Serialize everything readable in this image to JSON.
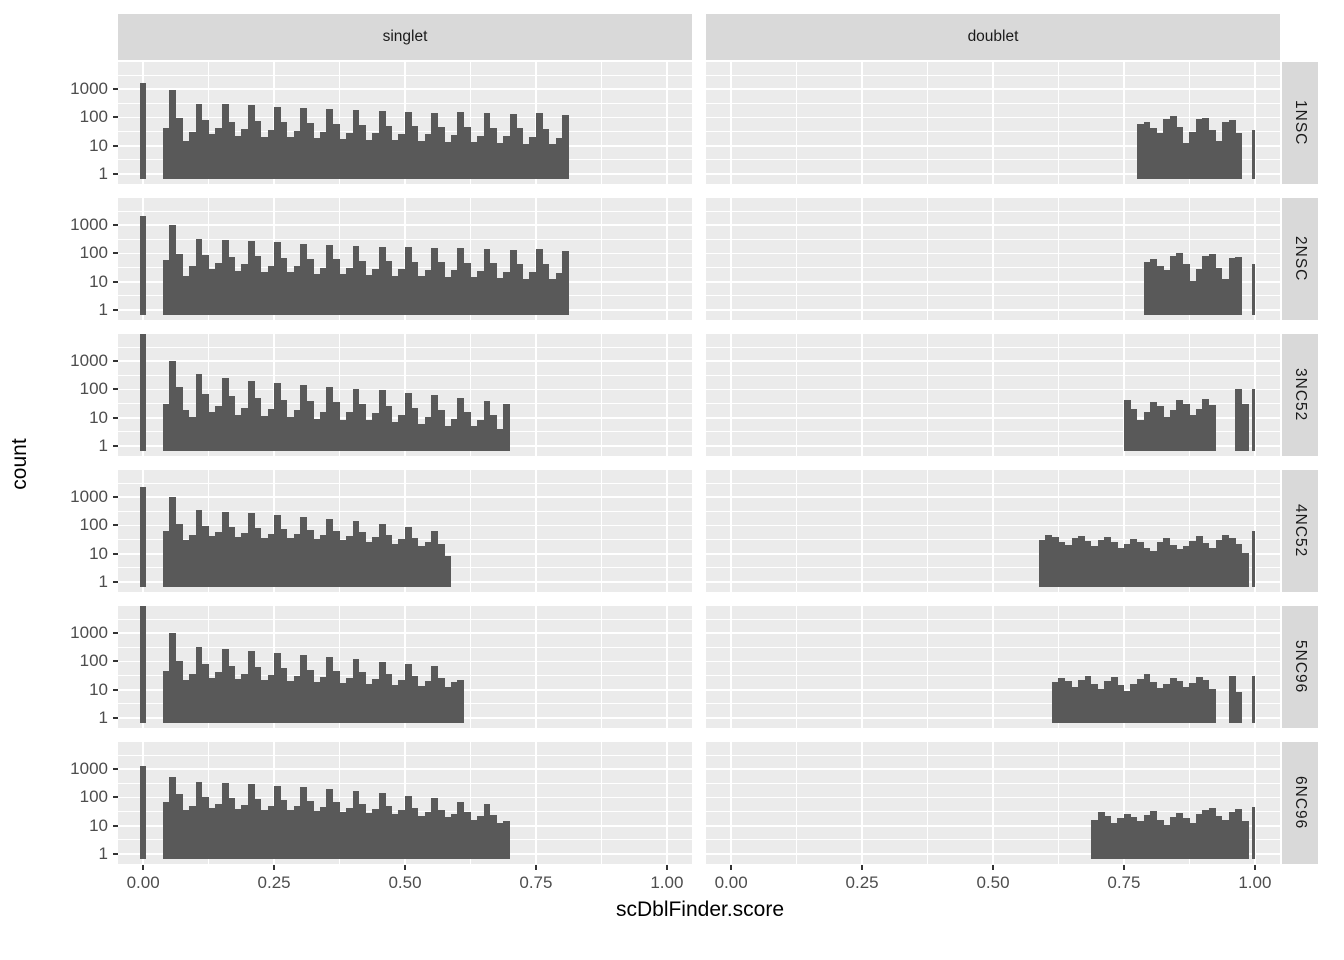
{
  "figure": {
    "x_axis_title": "scDblFinder.score",
    "y_axis_title": "count",
    "column_facets": [
      {
        "label": "singlet"
      },
      {
        "label": "doublet"
      }
    ],
    "row_facets": [
      {
        "label": "1NSC"
      },
      {
        "label": "2NSC"
      },
      {
        "label": "3NC52"
      },
      {
        "label": "4NC52"
      },
      {
        "label": "5NC96"
      },
      {
        "label": "6NC96"
      }
    ]
  },
  "colors": {
    "bar": "#595959",
    "panel_bg": "#EBEBEB",
    "strip_bg": "#D9D9D9",
    "grid": "#FFFFFF",
    "axis_text": "#4D4D4D",
    "strip_text": "#1A1A1A",
    "title_text": "#000000"
  },
  "chart_data": {
    "type": "bar",
    "subtype": "faceted-histogram",
    "title": "",
    "xlabel": "scDblFinder.score",
    "ylabel": "count",
    "y_scale": "log10",
    "grid": "on",
    "facet_columns": [
      "singlet",
      "doublet"
    ],
    "facet_rows": [
      "1NSC",
      "2NSC",
      "3NC52",
      "4NC52",
      "5NC96",
      "6NC96"
    ],
    "x_ticks": [
      0,
      0.25,
      0.5,
      0.75,
      1.0
    ],
    "x_tick_labels": [
      "0.00",
      "0.25",
      "0.50",
      "0.75",
      "1.00"
    ],
    "x_minor_ticks": [
      0.125,
      0.375,
      0.625,
      0.875
    ],
    "y_ticks": [
      1,
      10,
      100,
      1000
    ],
    "y_tick_labels": [
      "1",
      "10",
      "100",
      "1000"
    ],
    "y_minor_ticks": [
      3.162,
      31.62,
      316.2,
      3162
    ],
    "x_range": [
      -0.048,
      1.048
    ],
    "y_range_log10": [
      -0.35,
      3.95
    ],
    "bin_width": 0.0125,
    "panels": [
      {
        "row": "1NSC",
        "col": "singlet",
        "zero_spike": 1600,
        "x0": 0.0375,
        "counts": [
          40,
          930,
          95,
          14,
          30,
          300,
          80,
          25,
          40,
          280,
          70,
          22,
          38,
          260,
          75,
          20,
          35,
          230,
          65,
          20,
          33,
          210,
          62,
          18,
          30,
          190,
          58,
          17,
          28,
          175,
          52,
          16,
          27,
          165,
          50,
          15,
          26,
          155,
          48,
          14,
          25,
          145,
          46,
          13,
          24,
          150,
          44,
          13,
          22,
          135,
          42,
          12,
          21,
          125,
          40,
          11,
          20,
          140,
          38,
          11,
          19,
          115
        ]
      },
      {
        "row": "1NSC",
        "col": "doublet",
        "x0": 0.775,
        "one_spike": 35,
        "counts": [
          55,
          65,
          40,
          28,
          85,
          110,
          45,
          12,
          30,
          85,
          90,
          35,
          14,
          70,
          80,
          28
        ]
      },
      {
        "row": "2NSC",
        "col": "singlet",
        "zero_spike": 2000,
        "x0": 0.0375,
        "counts": [
          55,
          1000,
          90,
          16,
          35,
          320,
          85,
          28,
          45,
          300,
          75,
          24,
          40,
          270,
          78,
          22,
          36,
          240,
          68,
          21,
          34,
          215,
          64,
          19,
          31,
          195,
          60,
          18,
          29,
          180,
          54,
          17,
          28,
          170,
          52,
          16,
          27,
          160,
          50,
          15,
          26,
          150,
          48,
          14,
          25,
          155,
          46,
          14,
          23,
          140,
          44,
          13,
          22,
          130,
          42,
          12,
          21,
          145,
          40,
          12,
          20,
          120
        ]
      },
      {
        "row": "2NSC",
        "col": "doublet",
        "x0": 0.7875,
        "one_spike": 40,
        "counts": [
          50,
          60,
          35,
          25,
          80,
          105,
          40,
          10,
          28,
          80,
          95,
          30,
          12,
          65,
          75
        ]
      },
      {
        "row": "3NC52",
        "col": "singlet",
        "zero_spike": 10000,
        "x0": 0.0375,
        "counts": [
          30,
          950,
          120,
          18,
          10,
          330,
          70,
          15,
          25,
          250,
          55,
          12,
          22,
          200,
          48,
          11,
          20,
          160,
          42,
          10,
          18,
          140,
          38,
          9,
          16,
          120,
          34,
          8,
          15,
          105,
          30,
          8,
          14,
          90,
          26,
          7,
          12,
          75,
          22,
          6,
          10,
          60,
          18,
          5,
          9,
          48,
          15,
          5,
          8,
          38,
          12,
          4,
          30
        ]
      },
      {
        "row": "3NC52",
        "col": "doublet",
        "x0": 0.75,
        "one_spike": 100,
        "counts": [
          40,
          20,
          8,
          15,
          35,
          25,
          10,
          18,
          42,
          30,
          12,
          20,
          45,
          28,
          0,
          0,
          0,
          100,
          30
        ]
      },
      {
        "row": "4NC52",
        "col": "singlet",
        "zero_spike": 2200,
        "x0": 0.0375,
        "counts": [
          60,
          1000,
          110,
          30,
          45,
          340,
          95,
          40,
          55,
          290,
          85,
          38,
          52,
          260,
          80,
          36,
          50,
          230,
          75,
          34,
          48,
          200,
          70,
          32,
          45,
          170,
          62,
          30,
          42,
          140,
          55,
          26,
          38,
          110,
          45,
          22,
          32,
          85,
          35,
          18,
          25,
          60,
          22,
          8
        ]
      },
      {
        "row": "4NC52",
        "col": "doublet",
        "x0": 0.5875,
        "one_spike": 60,
        "counts": [
          30,
          45,
          38,
          25,
          20,
          35,
          42,
          28,
          18,
          30,
          38,
          25,
          15,
          22,
          32,
          26,
          16,
          12,
          25,
          35,
          20,
          14,
          18,
          28,
          40,
          24,
          16,
          30,
          45,
          35,
          22,
          10
        ]
      },
      {
        "row": "5NC96",
        "col": "singlet",
        "zero_spike": 9000,
        "x0": 0.0375,
        "counts": [
          45,
          950,
          100,
          22,
          35,
          320,
          80,
          26,
          40,
          260,
          70,
          24,
          36,
          220,
          62,
          22,
          33,
          190,
          56,
          20,
          30,
          160,
          50,
          18,
          28,
          135,
          45,
          17,
          26,
          115,
          40,
          16,
          24,
          95,
          35,
          14,
          22,
          80,
          30,
          13,
          20,
          65,
          25,
          12,
          18,
          22
        ]
      },
      {
        "row": "5NC96",
        "col": "doublet",
        "x0": 0.6125,
        "one_spike": 30,
        "counts": [
          18,
          25,
          20,
          12,
          22,
          30,
          16,
          10,
          20,
          28,
          14,
          9,
          16,
          24,
          35,
          18,
          11,
          15,
          26,
          20,
          12,
          17,
          28,
          22,
          10,
          0,
          0,
          30,
          8
        ]
      },
      {
        "row": "6NC96",
        "col": "singlet",
        "zero_spike": 1300,
        "x0": 0.0375,
        "counts": [
          70,
          520,
          130,
          35,
          50,
          350,
          100,
          40,
          55,
          310,
          90,
          38,
          52,
          280,
          85,
          36,
          50,
          250,
          80,
          34,
          48,
          220,
          72,
          32,
          45,
          190,
          65,
          30,
          42,
          160,
          58,
          28,
          38,
          135,
          50,
          25,
          34,
          110,
          42,
          22,
          30,
          90,
          36,
          20,
          26,
          70,
          30,
          16,
          22,
          55,
          24,
          12,
          14
        ]
      },
      {
        "row": "6NC96",
        "col": "doublet",
        "x0": 0.6875,
        "one_spike": 45,
        "counts": [
          15,
          30,
          22,
          12,
          18,
          26,
          20,
          14,
          24,
          32,
          16,
          10,
          20,
          28,
          18,
          12,
          25,
          35,
          40,
          22,
          16,
          30,
          38,
          14
        ]
      }
    ]
  }
}
